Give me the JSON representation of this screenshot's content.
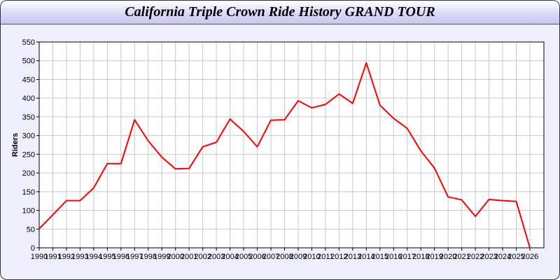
{
  "chart_data": {
    "type": "line",
    "title": "California Triple Crown Ride History GRAND TOUR",
    "xlabel": "",
    "ylabel": "Riders",
    "ylim": [
      0,
      550
    ],
    "yticks": [
      0,
      50,
      100,
      150,
      200,
      250,
      300,
      350,
      400,
      450,
      500,
      550
    ],
    "grid": true,
    "line_color": "#ff0000",
    "x": [
      1990,
      1991,
      1992,
      1993,
      1994,
      1995,
      1996,
      1997,
      1998,
      1999,
      2000,
      2001,
      2002,
      2003,
      2004,
      2005,
      2006,
      2007,
      2008,
      2009,
      2010,
      2011,
      2012,
      2013,
      2014,
      2015,
      2016,
      2017,
      2018,
      2019,
      2020,
      2021,
      2022,
      2023,
      2024,
      2025,
      2026
    ],
    "values": [
      51,
      88,
      126,
      126,
      160,
      225,
      225,
      342,
      286,
      242,
      211,
      212,
      270,
      282,
      344,
      311,
      270,
      341,
      342,
      393,
      374,
      383,
      411,
      386,
      494,
      381,
      346,
      319,
      259,
      213,
      136,
      128,
      84,
      129,
      126,
      124,
      0
    ]
  }
}
